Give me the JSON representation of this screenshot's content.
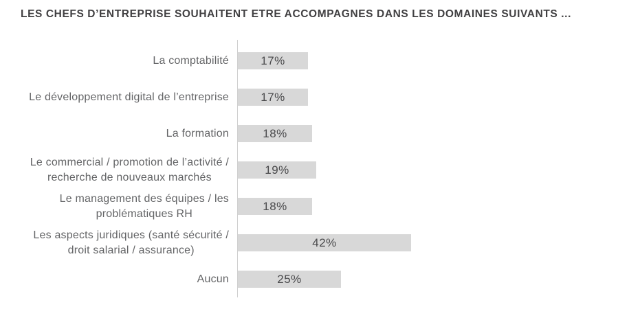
{
  "page": {
    "background_color": "#ffffff"
  },
  "chart_data": {
    "type": "bar",
    "orientation": "horizontal",
    "title": "LES CHEFS D’ENTREPRISE SOUHAITENT ETRE ACCOMPAGNES DANS LES DOMAINES SUIVANTS  ...",
    "categories": [
      "La comptabilité",
      "Le développement digital de l’entreprise",
      "La formation",
      "Le commercial / promotion de l’activité / recherche de nouveaux marchés",
      "Le management des équipes / les problématiques RH",
      "Les aspects juridiques (santé sécurité / droit salarial / assurance)",
      "Aucun"
    ],
    "category_lines": [
      [
        "La comptabilité"
      ],
      [
        "Le développement digital de l’entreprise"
      ],
      [
        "La formation"
      ],
      [
        "Le commercial / promotion de l’activité /",
        "recherche de nouveaux marchés"
      ],
      [
        "Le management des équipes / les",
        "problématiques RH"
      ],
      [
        "Les aspects juridiques (santé sécurité /",
        "droit salarial / assurance)"
      ],
      [
        "Aucun"
      ]
    ],
    "values": [
      17,
      17,
      18,
      19,
      18,
      42,
      25
    ],
    "value_labels": [
      "17%",
      "17%",
      "18%",
      "19%",
      "18%",
      "42%",
      "25%"
    ],
    "xlabel": "",
    "ylabel": "",
    "xlim": [
      0,
      97
    ],
    "grid": false,
    "legend": false,
    "value_label_position": "inside-center",
    "bar_color": "#d8d8d8",
    "axis_line_color": "#cfcfcf",
    "title_color": "#414042",
    "label_color": "#636466",
    "value_color": "#4a4a4c"
  }
}
